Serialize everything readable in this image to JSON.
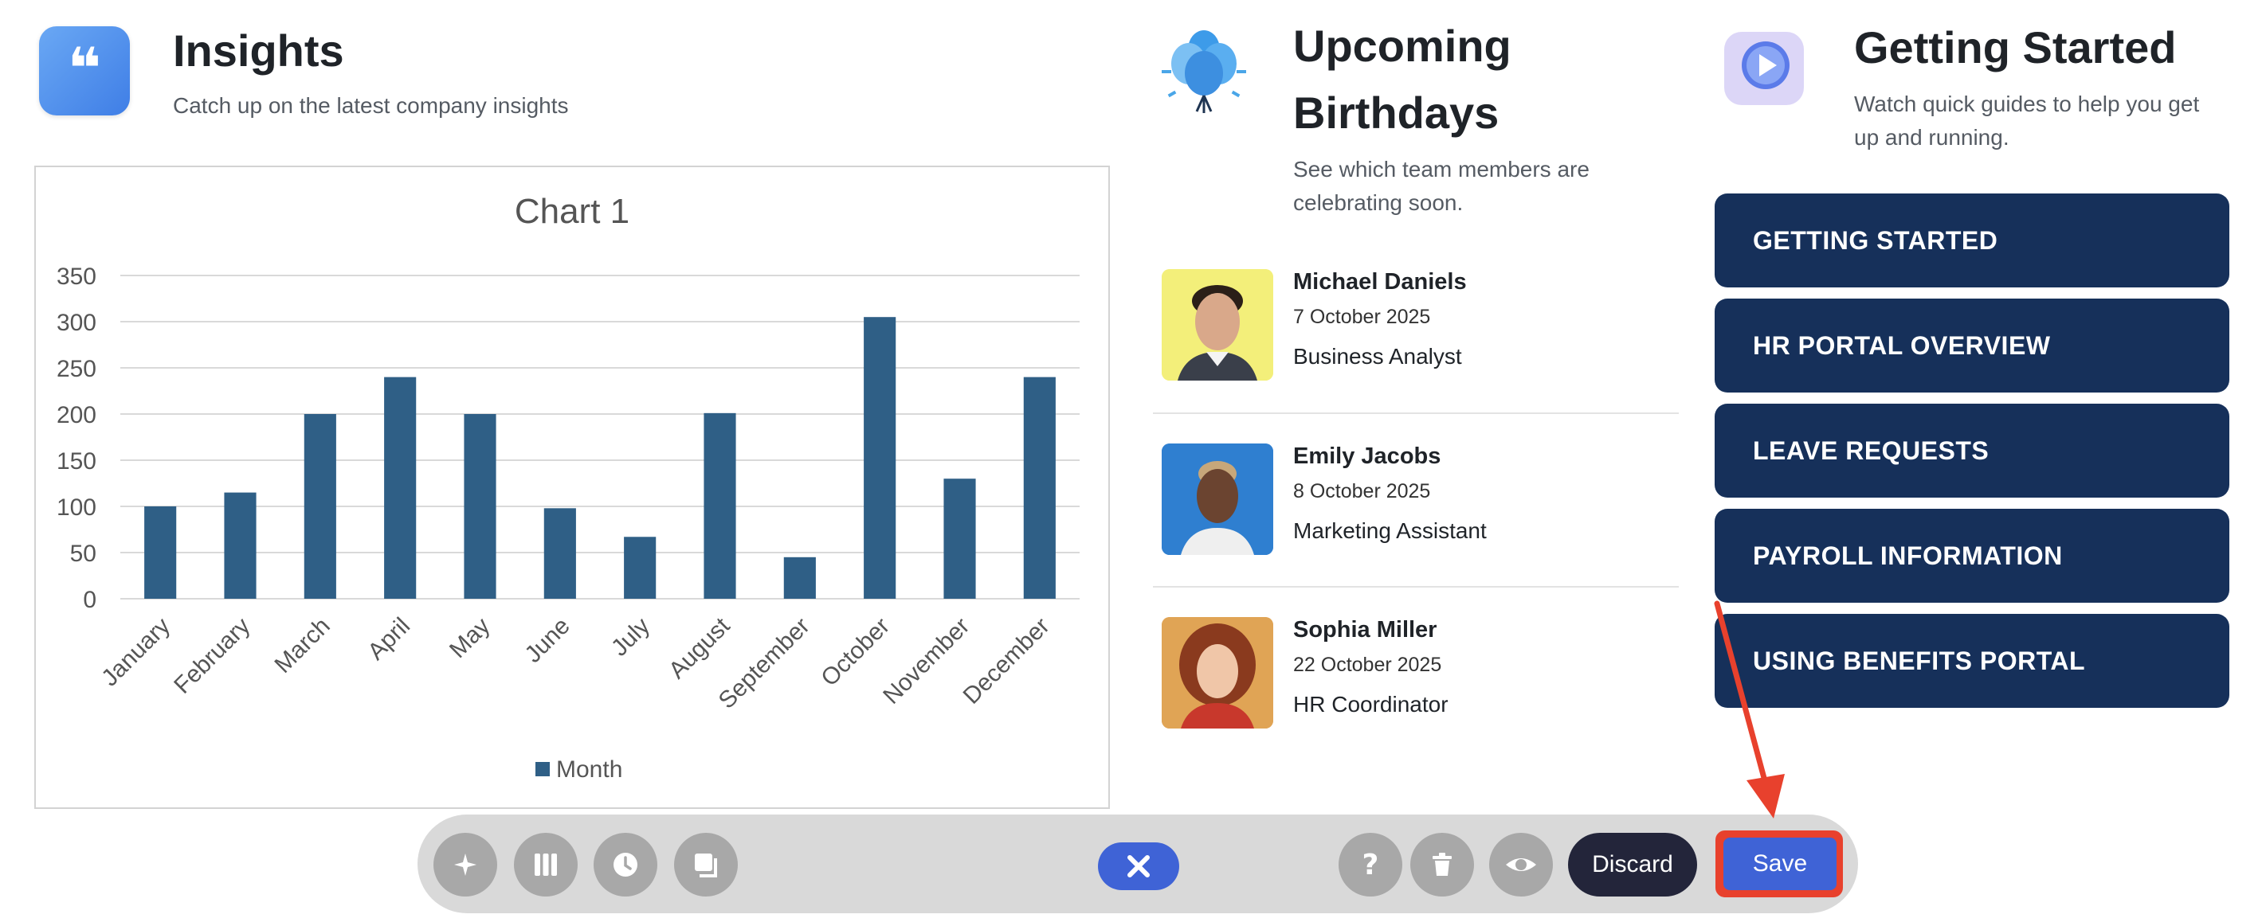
{
  "insights": {
    "title": "Insights",
    "subtitle": "Catch up on the latest company insights",
    "icon": "quote-icon"
  },
  "chart_data": {
    "type": "bar",
    "title": "Chart 1",
    "categories": [
      "January",
      "February",
      "March",
      "April",
      "May",
      "June",
      "July",
      "August",
      "September",
      "October",
      "November",
      "December"
    ],
    "series": [
      {
        "name": "Month",
        "values": [
          100,
          115,
          200,
          240,
          200,
          98,
          67,
          201,
          45,
          305,
          130,
          240
        ]
      }
    ],
    "ylim": [
      0,
      350
    ],
    "yticks": [
      0,
      50,
      100,
      150,
      200,
      250,
      300,
      350
    ],
    "legend": "bottom",
    "grid": true,
    "bar_color": "#2f5f86"
  },
  "birthdays": {
    "title_line1": "Upcoming",
    "title_line2": "Birthdays",
    "subtitle_line1": "See which team members are",
    "subtitle_line2": "celebrating soon.",
    "icon": "balloons-icon",
    "people": [
      {
        "name": "Michael Daniels",
        "date": "7 October 2025",
        "role": "Business Analyst",
        "photo_bg": "#f3ef7a"
      },
      {
        "name": "Emily Jacobs",
        "date": "8 October 2025",
        "role": "Marketing Assistant",
        "photo_bg": "#2f7fd0"
      },
      {
        "name": "Sophia Miller",
        "date": "22 October 2025",
        "role": "HR Coordinator",
        "photo_bg": "#e0a455"
      }
    ]
  },
  "getting_started": {
    "title": "Getting Started",
    "subtitle_line1": "Watch quick guides to help you get",
    "subtitle_line2": "up and running.",
    "icon": "video-play-icon",
    "buttons": [
      "GETTING STARTED",
      "HR PORTAL OVERVIEW",
      "LEAVE REQUESTS",
      "PAYROLL INFORMATION",
      "USING BENEFITS PORTAL"
    ]
  },
  "toolbar": {
    "discard_label": "Discard",
    "save_label": "Save",
    "icons": [
      "sparkle-icon",
      "columns-icon",
      "clock-icon",
      "copy-icon",
      "close-icon",
      "help-icon",
      "trash-icon",
      "eye-icon"
    ]
  },
  "colors": {
    "button_navy": "#16305a",
    "accent_blue": "#3f63d6",
    "annotation_red": "#e8412d"
  }
}
